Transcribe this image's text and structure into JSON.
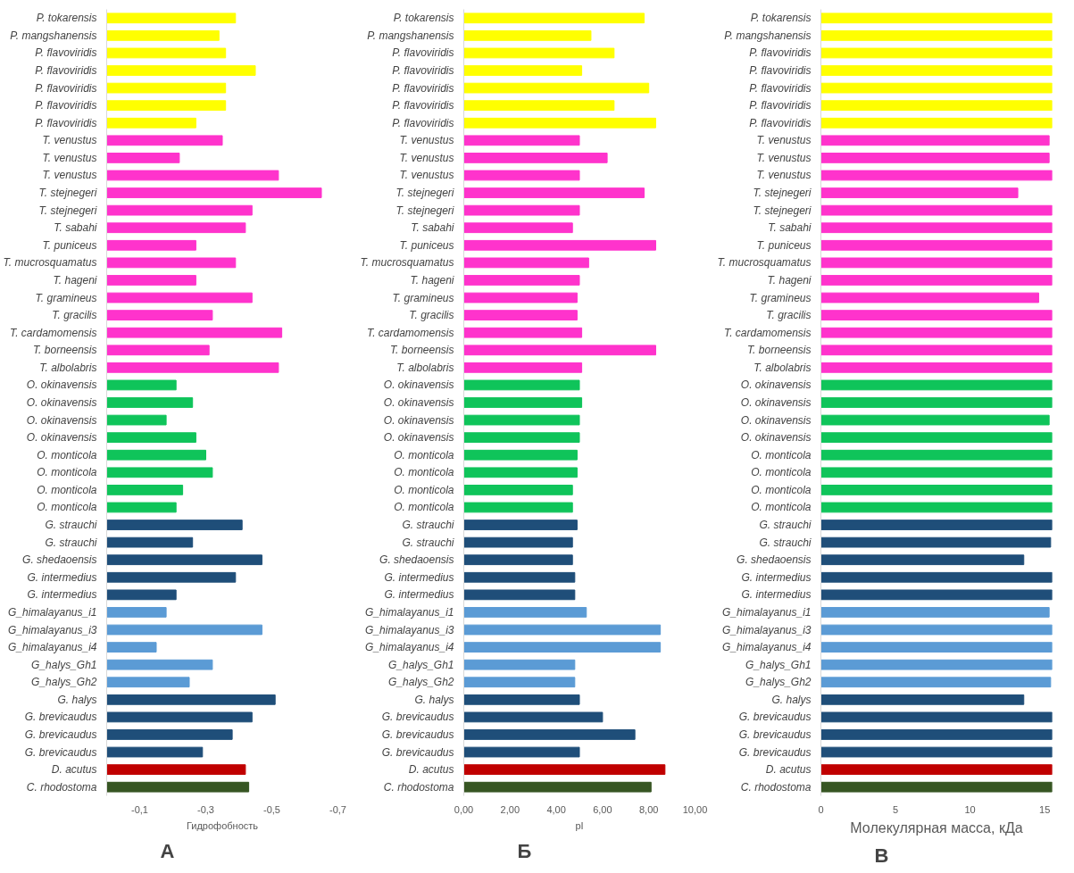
{
  "chart_data": [
    {
      "type": "bar",
      "orientation": "horizontal",
      "xlabel": "Гидрофобность",
      "annotations": [
        "А"
      ],
      "categories": [
        "P. tokarensis",
        "P. mangshanensis",
        "P. flavoviridis",
        "P. flavoviridis",
        "P. flavoviridis",
        "P. flavoviridis",
        "P. flavoviridis",
        "T. venustus",
        "T. venustus",
        "T. venustus",
        "T. stejnegeri",
        "T. stejnegeri",
        "T. sabahi",
        "T. puniceus",
        "T. mucrosquamatus",
        "T. hageni",
        "T. gramineus",
        "T. gracilis",
        "T. cardamomensis",
        "T. borneensis",
        "T. albolabris",
        "O. okinavensis",
        "O. okinavensis",
        "O. okinavensis",
        "O. okinavensis",
        "O. monticola",
        "O. monticola",
        "O. monticola",
        "O. monticola",
        "G. strauchi",
        "G. strauchi",
        "G. shedaoensis",
        "G. intermedius",
        "G. intermedius",
        "G_himalayanus_i1",
        "G_himalayanus_i3",
        "G_himalayanus_i4",
        "G_halys_Gh1",
        "G_halys_Gh2",
        "G. halys",
        "G. brevicaudus",
        "G. brevicaudus",
        "G. brevicaudus",
        "D. acutus",
        "C. rhodostoma"
      ],
      "values": [
        -0.39,
        -0.34,
        -0.36,
        -0.45,
        -0.36,
        -0.36,
        -0.27,
        -0.35,
        -0.22,
        -0.52,
        -0.65,
        -0.44,
        -0.42,
        -0.27,
        -0.39,
        -0.27,
        -0.44,
        -0.32,
        -0.53,
        -0.31,
        -0.52,
        -0.21,
        -0.26,
        -0.18,
        -0.27,
        -0.3,
        -0.32,
        -0.23,
        -0.21,
        -0.41,
        -0.26,
        -0.47,
        -0.39,
        -0.21,
        -0.18,
        -0.47,
        -0.15,
        -0.32,
        -0.25,
        -0.51,
        -0.44,
        -0.38,
        -0.29,
        -0.42,
        -0.43
      ],
      "colors": [
        "#ffff00",
        "#ffff00",
        "#ffff00",
        "#ffff00",
        "#ffff00",
        "#ffff00",
        "#ffff00",
        "#ff33cc",
        "#ff33cc",
        "#ff33cc",
        "#ff33cc",
        "#ff33cc",
        "#ff33cc",
        "#ff33cc",
        "#ff33cc",
        "#ff33cc",
        "#ff33cc",
        "#ff33cc",
        "#ff33cc",
        "#ff33cc",
        "#ff33cc",
        "#0fc45a",
        "#0fc45a",
        "#0fc45a",
        "#0fc45a",
        "#0fc45a",
        "#0fc45a",
        "#0fc45a",
        "#0fc45a",
        "#1f4e79",
        "#1f4e79",
        "#1f4e79",
        "#1f4e79",
        "#1f4e79",
        "#5b9bd5",
        "#5b9bd5",
        "#5b9bd5",
        "#5b9bd5",
        "#5b9bd5",
        "#1f4e79",
        "#1f4e79",
        "#1f4e79",
        "#1f4e79",
        "#c00000",
        "#375623"
      ],
      "xlim": [
        0,
        -0.7
      ],
      "xticks": [
        {
          "value": -0.1,
          "label": "-0,1"
        },
        {
          "value": -0.3,
          "label": "-0,3"
        },
        {
          "value": -0.5,
          "label": "-0,5"
        },
        {
          "value": -0.7,
          "label": "-0,7"
        }
      ],
      "grid": false
    },
    {
      "type": "bar",
      "orientation": "horizontal",
      "xlabel": "pI",
      "annotations": [
        "Б"
      ],
      "categories": [
        "P. tokarensis",
        "P. mangshanensis",
        "P. flavoviridis",
        "P. flavoviridis",
        "P. flavoviridis",
        "P. flavoviridis",
        "P. flavoviridis",
        "T. venustus",
        "T. venustus",
        "T. venustus",
        "T. stejnegeri",
        "T. stejnegeri",
        "T. sabahi",
        "T. puniceus",
        "T. mucrosquamatus",
        "T. hageni",
        "T. gramineus",
        "T. gracilis",
        "T. cardamomensis",
        "T. borneensis",
        "T. albolabris",
        "O. okinavensis",
        "O. okinavensis",
        "O. okinavensis",
        "O. okinavensis",
        "O. monticola",
        "O. monticola",
        "O. monticola",
        "O. monticola",
        "G. strauchi",
        "G. strauchi",
        "G. shedaoensis",
        "G. intermedius",
        "G. intermedius",
        "G_himalayanus_i1",
        "G_himalayanus_i3",
        "G_himalayanus_i4",
        "G_halys_Gh1",
        "G_halys_Gh2",
        "G. halys",
        "G. brevicaudus",
        "G. brevicaudus",
        "G. brevicaudus",
        "D. acutus",
        "C. rhodostoma"
      ],
      "values": [
        7.8,
        5.5,
        6.5,
        5.1,
        8.0,
        6.5,
        8.3,
        5.0,
        6.2,
        5.0,
        7.8,
        5.0,
        4.7,
        8.3,
        5.4,
        5.0,
        4.9,
        4.9,
        5.1,
        8.3,
        5.1,
        5.0,
        5.1,
        5.0,
        5.0,
        4.9,
        4.9,
        4.7,
        4.7,
        4.9,
        4.7,
        4.7,
        4.8,
        4.8,
        5.3,
        8.5,
        8.5,
        4.8,
        4.8,
        5.0,
        6.0,
        7.4,
        5.0,
        8.7,
        8.1
      ],
      "colors": [
        "#ffff00",
        "#ffff00",
        "#ffff00",
        "#ffff00",
        "#ffff00",
        "#ffff00",
        "#ffff00",
        "#ff33cc",
        "#ff33cc",
        "#ff33cc",
        "#ff33cc",
        "#ff33cc",
        "#ff33cc",
        "#ff33cc",
        "#ff33cc",
        "#ff33cc",
        "#ff33cc",
        "#ff33cc",
        "#ff33cc",
        "#ff33cc",
        "#ff33cc",
        "#0fc45a",
        "#0fc45a",
        "#0fc45a",
        "#0fc45a",
        "#0fc45a",
        "#0fc45a",
        "#0fc45a",
        "#0fc45a",
        "#1f4e79",
        "#1f4e79",
        "#1f4e79",
        "#1f4e79",
        "#1f4e79",
        "#5b9bd5",
        "#5b9bd5",
        "#5b9bd5",
        "#5b9bd5",
        "#5b9bd5",
        "#1f4e79",
        "#1f4e79",
        "#1f4e79",
        "#1f4e79",
        "#c00000",
        "#375623"
      ],
      "xlim": [
        0,
        10
      ],
      "xticks": [
        {
          "value": 0,
          "label": "0,00"
        },
        {
          "value": 2,
          "label": "2,00"
        },
        {
          "value": 4,
          "label": "4,00"
        },
        {
          "value": 6,
          "label": "6,00"
        },
        {
          "value": 8,
          "label": "8,00"
        },
        {
          "value": 10,
          "label": "10,00"
        }
      ],
      "grid": false
    },
    {
      "type": "bar",
      "orientation": "horizontal",
      "xlabel": "Молекулярная масса, кДа",
      "annotations": [
        "В"
      ],
      "categories": [
        "P. tokarensis",
        "P. mangshanensis",
        "P. flavoviridis",
        "P. flavoviridis",
        "P. flavoviridis",
        "P. flavoviridis",
        "P. flavoviridis",
        "T. venustus",
        "T. venustus",
        "T. venustus",
        "T. stejnegeri",
        "T. stejnegeri",
        "T. sabahi",
        "T. puniceus",
        "T. mucrosquamatus",
        "T. hageni",
        "T. gramineus",
        "T. gracilis",
        "T. cardamomensis",
        "T. borneensis",
        "T. albolabris",
        "O. okinavensis",
        "O. okinavensis",
        "O. okinavensis",
        "O. okinavensis",
        "O. monticola",
        "O. monticola",
        "O. monticola",
        "O. monticola",
        "G. strauchi",
        "G. strauchi",
        "G. shedaoensis",
        "G. intermedius",
        "G. intermedius",
        "G_himalayanus_i1",
        "G_himalayanus_i3",
        "G_himalayanus_i4",
        "G_halys_Gh1",
        "G_halys_Gh2",
        "G. halys",
        "G. brevicaudus",
        "G. brevicaudus",
        "G. brevicaudus",
        "D. acutus",
        "C. rhodostoma"
      ],
      "values": [
        15.5,
        15.5,
        15.5,
        15.5,
        15.5,
        15.5,
        15.5,
        15.3,
        15.3,
        15.5,
        13.2,
        15.5,
        15.5,
        15.5,
        15.5,
        15.5,
        14.6,
        15.5,
        15.5,
        15.5,
        15.5,
        15.5,
        15.5,
        15.3,
        15.5,
        15.5,
        15.5,
        15.5,
        15.5,
        15.5,
        15.4,
        13.6,
        15.5,
        15.5,
        15.3,
        15.5,
        15.5,
        15.5,
        15.4,
        13.6,
        15.5,
        15.5,
        15.5,
        15.5,
        15.5
      ],
      "colors": [
        "#ffff00",
        "#ffff00",
        "#ffff00",
        "#ffff00",
        "#ffff00",
        "#ffff00",
        "#ffff00",
        "#ff33cc",
        "#ff33cc",
        "#ff33cc",
        "#ff33cc",
        "#ff33cc",
        "#ff33cc",
        "#ff33cc",
        "#ff33cc",
        "#ff33cc",
        "#ff33cc",
        "#ff33cc",
        "#ff33cc",
        "#ff33cc",
        "#ff33cc",
        "#0fc45a",
        "#0fc45a",
        "#0fc45a",
        "#0fc45a",
        "#0fc45a",
        "#0fc45a",
        "#0fc45a",
        "#0fc45a",
        "#1f4e79",
        "#1f4e79",
        "#1f4e79",
        "#1f4e79",
        "#1f4e79",
        "#5b9bd5",
        "#5b9bd5",
        "#5b9bd5",
        "#5b9bd5",
        "#5b9bd5",
        "#1f4e79",
        "#1f4e79",
        "#1f4e79",
        "#1f4e79",
        "#c00000",
        "#375623"
      ],
      "xlim": [
        0,
        15.5
      ],
      "xticks": [
        0,
        5,
        10,
        15
      ],
      "grid": false
    }
  ]
}
